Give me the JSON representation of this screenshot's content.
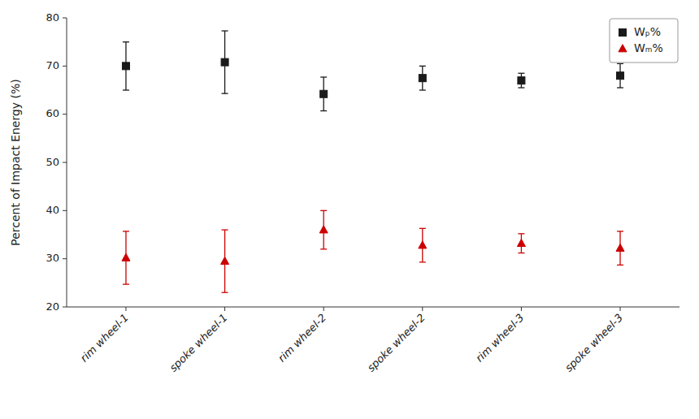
{
  "chart_data": {
    "type": "scatter",
    "categories": [
      "rim wheel-1",
      "spoke wheel-1",
      "rim wheel-2",
      "spoke wheel-2",
      "rim wheel-3",
      "spoke wheel-3"
    ],
    "y_label": "Percent of Impact Energy (%)",
    "series": [
      {
        "name": "Wₚ%",
        "color": "#1a1a1a",
        "marker": "square",
        "values": [
          70.0,
          70.8,
          64.2,
          67.5,
          67.0,
          68.0
        ],
        "errors": [
          5.0,
          6.5,
          3.5,
          2.5,
          1.5,
          2.5
        ]
      },
      {
        "name": "Wₘ%",
        "color": "#cc0000",
        "marker": "triangle",
        "values": [
          30.2,
          29.5,
          36.0,
          32.8,
          33.2,
          32.2
        ],
        "errors": [
          5.5,
          6.5,
          4.0,
          3.5,
          2.0,
          3.5
        ]
      }
    ],
    "ylim": [
      20,
      80
    ],
    "yticks": [
      20,
      30,
      40,
      50,
      60,
      70,
      80
    ],
    "grid": false,
    "legend": "upper right"
  }
}
